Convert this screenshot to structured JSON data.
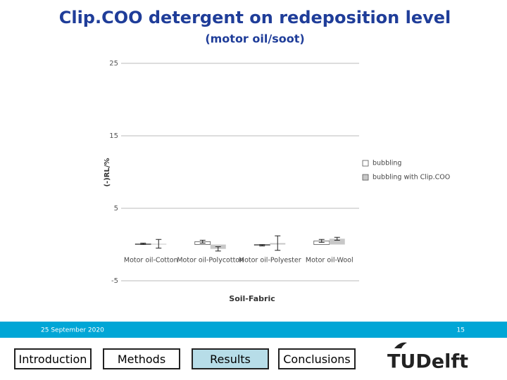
{
  "chart_data": {
    "type": "bar",
    "title": "Clip.COO detergent on redeposition level",
    "subtitle": "(motor oil/soot)",
    "x_label": "Soil-Fabric",
    "y_label": "(-)RL/%",
    "categories": [
      "Motor oil-Cotton",
      "Motor oil-Polycotton",
      "Motor oil-Polyester",
      "Motor oil-Wool"
    ],
    "series": [
      {
        "name": "bubbling",
        "color": "#ffffff",
        "values": [
          0.1,
          0.4,
          -0.1,
          0.5
        ],
        "errors": [
          0.1,
          0.2,
          0.1,
          0.2
        ]
      },
      {
        "name": "bubbling with Clip.COO",
        "color": "#c8c8c8",
        "values": [
          0.1,
          -0.6,
          0.2,
          0.8
        ],
        "errors": [
          0.6,
          0.3,
          1.0,
          0.2
        ]
      }
    ],
    "ylim": [
      -5,
      25
    ],
    "yticks": [
      25,
      15,
      5,
      -5
    ],
    "grid": true,
    "legend": "right"
  },
  "footer": {
    "date": "25 September 2020",
    "page": "15"
  },
  "nav": [
    "Introduction",
    "Methods",
    "Results",
    "Conclusions"
  ],
  "logo": "TUDelft"
}
